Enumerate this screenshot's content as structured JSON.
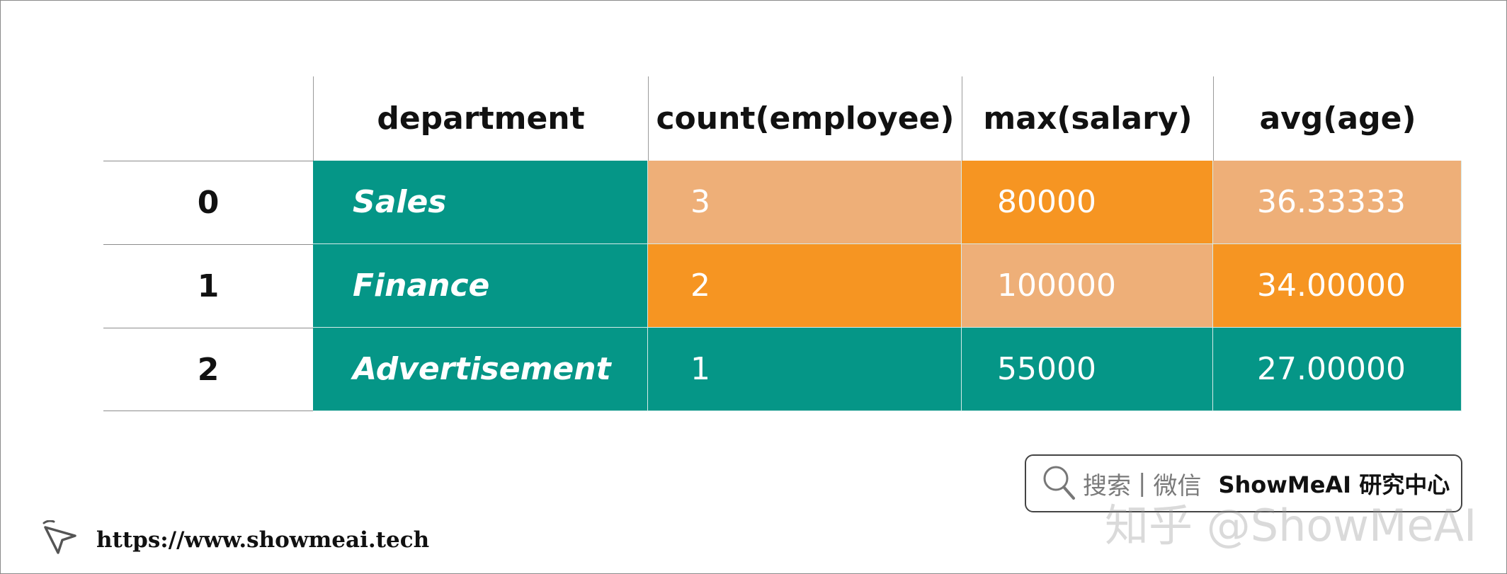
{
  "table": {
    "columns": [
      "department",
      "count(employee)",
      "max(salary)",
      "avg(age)"
    ],
    "rows": [
      {
        "index": "0",
        "department": "Sales",
        "count": "3",
        "max_salary": "80000",
        "avg_age": "36.33333"
      },
      {
        "index": "1",
        "department": "Finance",
        "count": "2",
        "max_salary": "100000",
        "avg_age": "34.00000"
      },
      {
        "index": "2",
        "department": "Advertisement",
        "count": "1",
        "max_salary": "55000",
        "avg_age": "27.00000"
      }
    ]
  },
  "colors": {
    "teal": "#059687",
    "peach": "#eeaf78",
    "orange": "#f69522"
  },
  "footer": {
    "url": "https://www.showmeai.tech",
    "icon": "cursor-arrow-icon",
    "badge_search": "搜索",
    "badge_sep": "|",
    "badge_wechat": "微信",
    "badge_brand": "ShowMeAI 研究中心",
    "watermark": "知乎 @ShowMeAI"
  }
}
